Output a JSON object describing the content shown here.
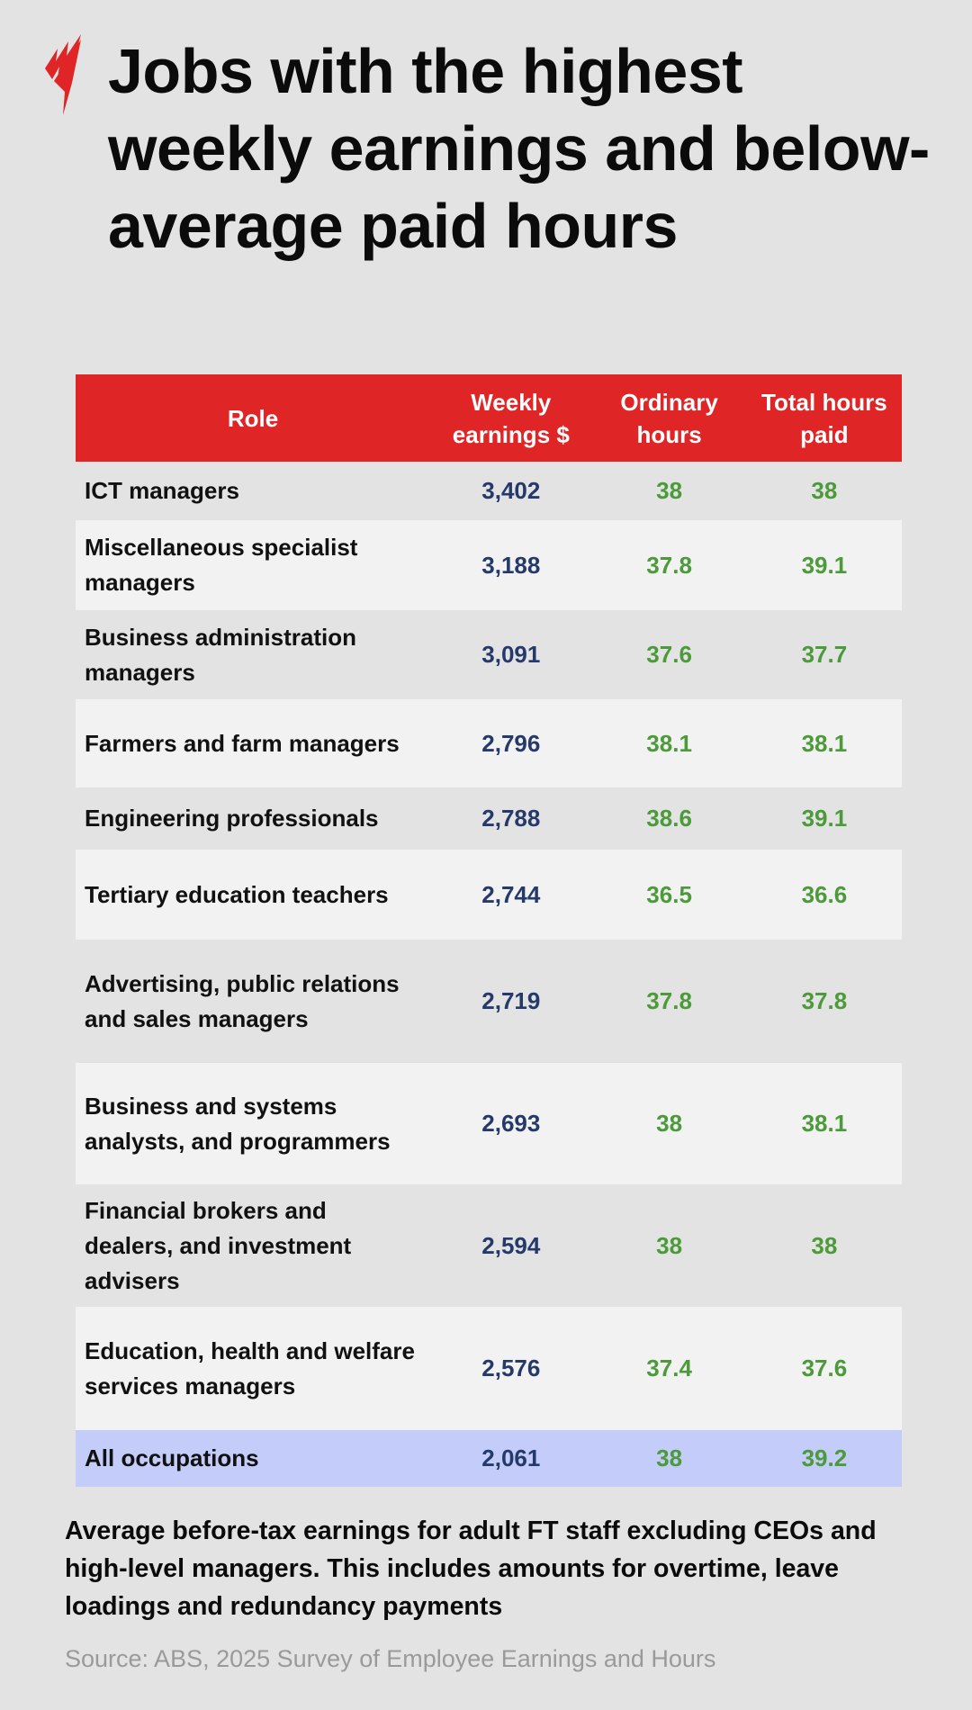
{
  "brand": {
    "logo": "SBS",
    "accent_color": "#e02526"
  },
  "title": "Jobs with the highest weekly earnings and below-average paid hours",
  "table": {
    "headers": [
      "Role",
      "Weekly earnings $",
      "Ordinary hours",
      "Total hours paid"
    ],
    "rows": [
      {
        "role": "ICT managers",
        "weekly": "3,402",
        "ordinary": "38",
        "total": "38"
      },
      {
        "role": "Miscellaneous specialist managers",
        "weekly": "3,188",
        "ordinary": "37.8",
        "total": "39.1"
      },
      {
        "role": "Business administration managers",
        "weekly": "3,091",
        "ordinary": "37.6",
        "total": "37.7"
      },
      {
        "role": "Farmers and farm managers",
        "weekly": "2,796",
        "ordinary": "38.1",
        "total": "38.1"
      },
      {
        "role": "Engineering professionals",
        "weekly": "2,788",
        "ordinary": "38.6",
        "total": "39.1"
      },
      {
        "role": "Tertiary education teachers",
        "weekly": "2,744",
        "ordinary": "36.5",
        "total": "36.6"
      },
      {
        "role": "Advertising, public relations and sales managers",
        "weekly": "2,719",
        "ordinary": "37.8",
        "total": "37.8"
      },
      {
        "role": "Business and systems analysts, and programmers",
        "weekly": "2,693",
        "ordinary": "38",
        "total": "38.1"
      },
      {
        "role": "Financial brokers and dealers, and investment advisers",
        "weekly": "2,594",
        "ordinary": "38",
        "total": "38"
      },
      {
        "role": "Education, health and welfare services managers",
        "weekly": "2,576",
        "ordinary": "37.4",
        "total": "37.6"
      }
    ],
    "summary": {
      "role": "All occupations",
      "weekly": "2,061",
      "ordinary": "38",
      "total": "39.2"
    }
  },
  "note": "Average before-tax earnings for adult FT staff excluding CEOs and high-level managers. This includes amounts for overtime, leave loadings and redundancy payments",
  "source": "Source: ABS, 2025 Survey of Employee Earnings and Hours"
}
